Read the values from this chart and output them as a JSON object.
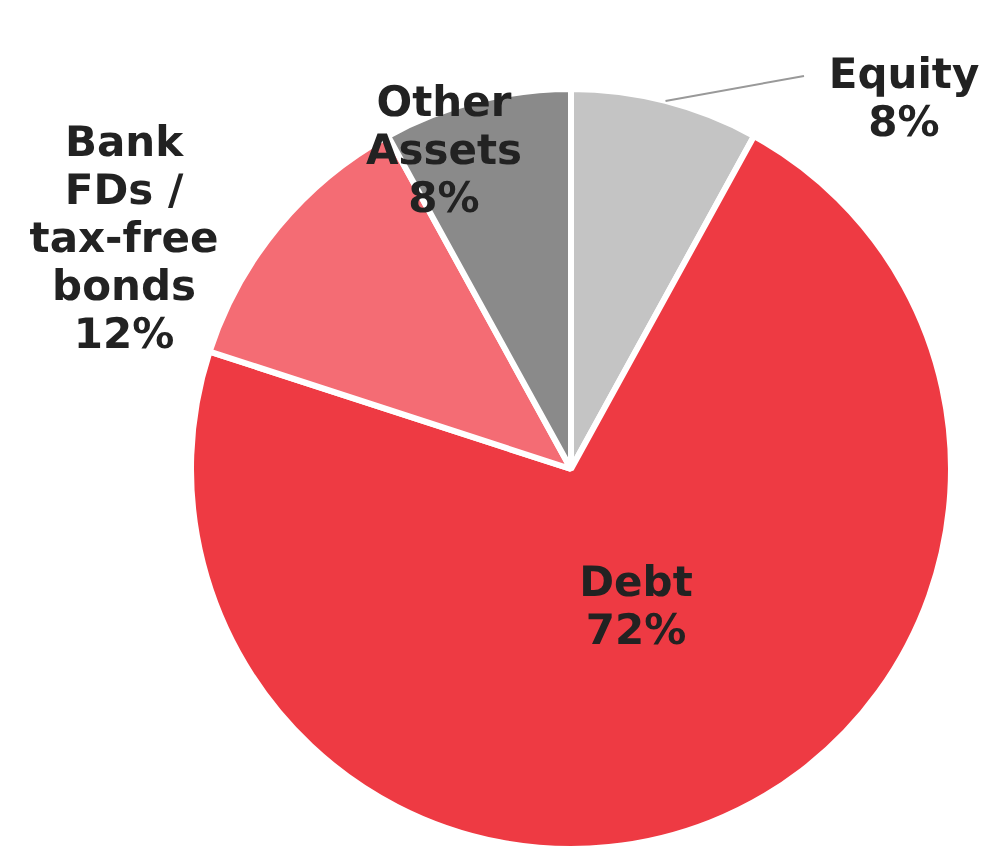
{
  "chart_data": {
    "type": "pie",
    "categories": [
      "Equity",
      "Debt",
      "Bank FDs / tax-free bonds",
      "Other Assets"
    ],
    "values": [
      8,
      72,
      12,
      8
    ],
    "colors": [
      "#c4c4c4",
      "#ee3a43",
      "#f46c74",
      "#8a8a8a"
    ],
    "value_labels": [
      "8%",
      "72%",
      "12%",
      "8%"
    ],
    "legend": false
  }
}
